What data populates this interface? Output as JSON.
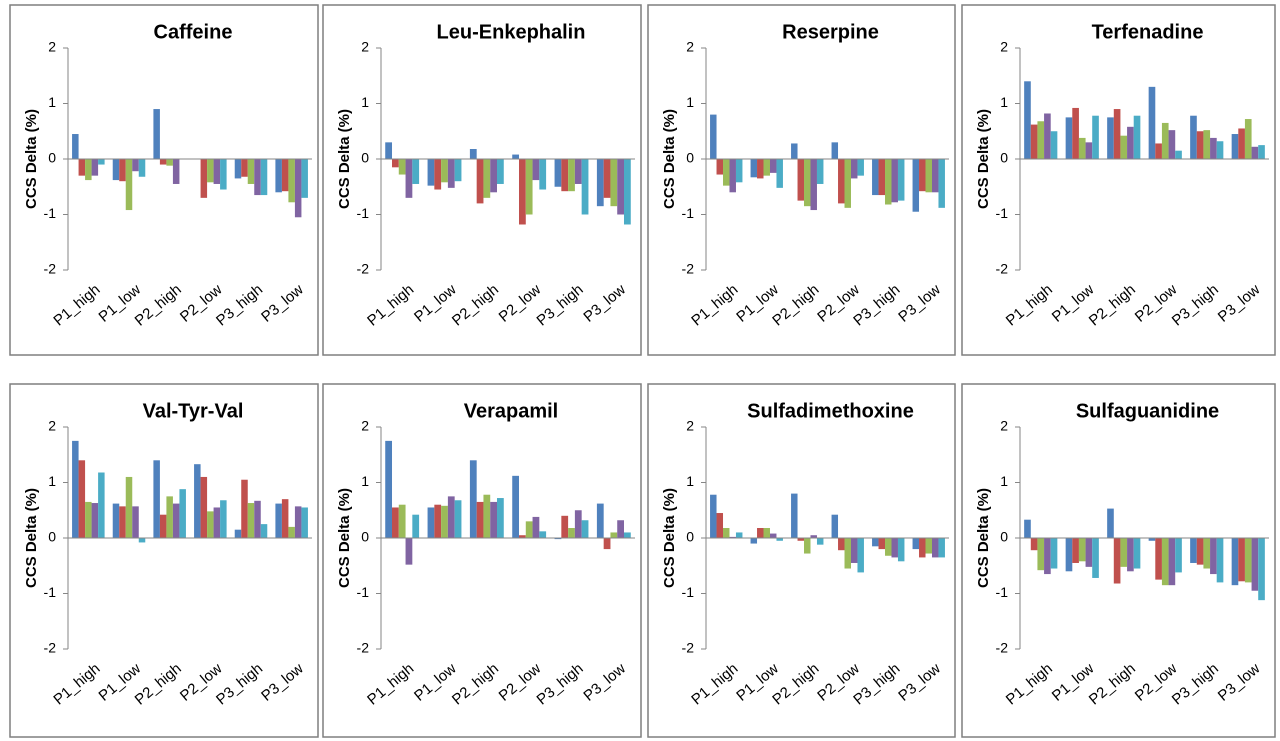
{
  "chart_data": [
    {
      "type": "bar",
      "title": "Caffeine",
      "y_label": "CCS Delta (%)",
      "categories": [
        "P1_high",
        "P1_low",
        "P2_high",
        "P2_low",
        "P3_high",
        "P3_low"
      ],
      "ylim": [
        -2,
        2
      ],
      "yticks": [
        -2,
        -1,
        0,
        1,
        2
      ],
      "series": [
        {
          "color": "#4f81bd",
          "values": [
            0.45,
            -0.38,
            0.9,
            0,
            -0.35,
            -0.6
          ]
        },
        {
          "color": "#c0504d",
          "values": [
            -0.3,
            -0.4,
            -0.1,
            -0.7,
            -0.32,
            -0.58
          ]
        },
        {
          "color": "#9bbb59",
          "values": [
            -0.38,
            -0.92,
            -0.12,
            -0.42,
            -0.45,
            -0.78
          ]
        },
        {
          "color": "#8064a2",
          "values": [
            -0.3,
            -0.22,
            -0.45,
            -0.45,
            -0.65,
            -1.05
          ]
        },
        {
          "color": "#4bacc6",
          "values": [
            -0.1,
            -0.32,
            0,
            -0.55,
            -0.65,
            -0.7
          ]
        }
      ]
    },
    {
      "type": "bar",
      "title": "Leu-Enkephalin",
      "y_label": "CCS Delta (%)",
      "categories": [
        "P1_high",
        "P1_low",
        "P2_high",
        "P2_low",
        "P3_high",
        "P3_low"
      ],
      "ylim": [
        -2,
        2
      ],
      "yticks": [
        -2,
        -1,
        0,
        1,
        2
      ],
      "series": [
        {
          "color": "#4f81bd",
          "values": [
            0.3,
            -0.48,
            0.18,
            0.08,
            -0.5,
            -0.85
          ]
        },
        {
          "color": "#c0504d",
          "values": [
            -0.15,
            -0.55,
            -0.8,
            -1.18,
            -0.58,
            -0.7
          ]
        },
        {
          "color": "#9bbb59",
          "values": [
            -0.28,
            -0.42,
            -0.7,
            -1.0,
            -0.58,
            -0.85
          ]
        },
        {
          "color": "#8064a2",
          "values": [
            -0.7,
            -0.52,
            -0.6,
            -0.38,
            -0.45,
            -1.0
          ]
        },
        {
          "color": "#4bacc6",
          "values": [
            -0.45,
            -0.4,
            -0.45,
            -0.55,
            -1.0,
            -1.18
          ]
        }
      ]
    },
    {
      "type": "bar",
      "title": "Reserpine",
      "y_label": "CCS Delta (%)",
      "categories": [
        "P1_high",
        "P1_low",
        "P2_high",
        "P2_low",
        "P3_high",
        "P3_low"
      ],
      "ylim": [
        -2,
        2
      ],
      "yticks": [
        -2,
        -1,
        0,
        1,
        2
      ],
      "series": [
        {
          "color": "#4f81bd",
          "values": [
            0.8,
            -0.33,
            0.28,
            0.3,
            -0.65,
            -0.95
          ]
        },
        {
          "color": "#c0504d",
          "values": [
            -0.28,
            -0.35,
            -0.75,
            -0.8,
            -0.65,
            -0.58
          ]
        },
        {
          "color": "#9bbb59",
          "values": [
            -0.48,
            -0.3,
            -0.85,
            -0.88,
            -0.82,
            -0.6
          ]
        },
        {
          "color": "#8064a2",
          "values": [
            -0.6,
            -0.25,
            -0.92,
            -0.35,
            -0.78,
            -0.6
          ]
        },
        {
          "color": "#4bacc6",
          "values": [
            -0.42,
            -0.52,
            -0.45,
            -0.3,
            -0.75,
            -0.88
          ]
        }
      ]
    },
    {
      "type": "bar",
      "title": "Terfenadine",
      "y_label": "CCS Delta (%)",
      "categories": [
        "P1_high",
        "P1_low",
        "P2_high",
        "P2_low",
        "P3_high",
        "P3_low"
      ],
      "ylim": [
        -2,
        2
      ],
      "yticks": [
        -2,
        -1,
        0,
        1,
        2
      ],
      "series": [
        {
          "color": "#4f81bd",
          "values": [
            1.4,
            0.75,
            0.75,
            1.3,
            0.78,
            0.45
          ]
        },
        {
          "color": "#c0504d",
          "values": [
            0.62,
            0.92,
            0.9,
            0.28,
            0.5,
            0.55
          ]
        },
        {
          "color": "#9bbb59",
          "values": [
            0.68,
            0.38,
            0.42,
            0.65,
            0.52,
            0.72
          ]
        },
        {
          "color": "#8064a2",
          "values": [
            0.82,
            0.3,
            0.58,
            0.52,
            0.38,
            0.22
          ]
        },
        {
          "color": "#4bacc6",
          "values": [
            0.5,
            0.78,
            0.78,
            0.15,
            0.32,
            0.25
          ]
        }
      ]
    },
    {
      "type": "bar",
      "title": "Val-Tyr-Val",
      "y_label": "CCS Delta (%)",
      "categories": [
        "P1_high",
        "P1_low",
        "P2_high",
        "P2_low",
        "P3_high",
        "P3_low"
      ],
      "ylim": [
        -2,
        2
      ],
      "yticks": [
        -2,
        -1,
        0,
        1,
        2
      ],
      "series": [
        {
          "color": "#4f81bd",
          "values": [
            1.75,
            0.62,
            1.4,
            1.33,
            0.15,
            0.62
          ]
        },
        {
          "color": "#c0504d",
          "values": [
            1.4,
            0.57,
            0.42,
            1.1,
            1.05,
            0.7
          ]
        },
        {
          "color": "#9bbb59",
          "values": [
            0.65,
            1.1,
            0.75,
            0.48,
            0.63,
            0.2
          ]
        },
        {
          "color": "#8064a2",
          "values": [
            0.63,
            0.57,
            0.62,
            0.55,
            0.67,
            0.57
          ]
        },
        {
          "color": "#4bacc6",
          "values": [
            1.18,
            -0.08,
            0.88,
            0.68,
            0.25,
            0.55
          ]
        }
      ]
    },
    {
      "type": "bar",
      "title": "Verapamil",
      "y_label": "CCS Delta (%)",
      "categories": [
        "P1_high",
        "P1_low",
        "P2_high",
        "P2_low",
        "P3_high",
        "P3_low"
      ],
      "ylim": [
        -2,
        2
      ],
      "yticks": [
        -2,
        -1,
        0,
        1,
        2
      ],
      "series": [
        {
          "color": "#4f81bd",
          "values": [
            1.75,
            0.55,
            1.4,
            1.12,
            -0.02,
            0.62
          ]
        },
        {
          "color": "#c0504d",
          "values": [
            0.55,
            0.6,
            0.65,
            0.05,
            0.4,
            -0.2
          ]
        },
        {
          "color": "#9bbb59",
          "values": [
            0.6,
            0.58,
            0.78,
            0.3,
            0.18,
            0.1
          ]
        },
        {
          "color": "#8064a2",
          "values": [
            -0.48,
            0.75,
            0.65,
            0.38,
            0.5,
            0.32
          ]
        },
        {
          "color": "#4bacc6",
          "values": [
            0.42,
            0.68,
            0.72,
            0.12,
            0.32,
            0.1
          ]
        }
      ]
    },
    {
      "type": "bar",
      "title": "Sulfadimethoxine",
      "y_label": "CCS Delta (%)",
      "categories": [
        "P1_high",
        "P1_low",
        "P2_high",
        "P2_low",
        "P3_high",
        "P3_low"
      ],
      "ylim": [
        -2,
        2
      ],
      "yticks": [
        -2,
        -1,
        0,
        1,
        2
      ],
      "series": [
        {
          "color": "#4f81bd",
          "values": [
            0.78,
            -0.1,
            0.8,
            0.42,
            -0.15,
            -0.2
          ]
        },
        {
          "color": "#c0504d",
          "values": [
            0.45,
            0.18,
            -0.05,
            -0.22,
            -0.2,
            -0.35
          ]
        },
        {
          "color": "#9bbb59",
          "values": [
            0.18,
            0.18,
            -0.28,
            -0.55,
            -0.32,
            -0.28
          ]
        },
        {
          "color": "#8064a2",
          "values": [
            0.02,
            0.08,
            0.05,
            -0.45,
            -0.35,
            -0.35
          ]
        },
        {
          "color": "#4bacc6",
          "values": [
            0.1,
            -0.05,
            -0.12,
            -0.62,
            -0.42,
            -0.35
          ]
        }
      ]
    },
    {
      "type": "bar",
      "title": "Sulfaguanidine",
      "y_label": "CCS Delta (%)",
      "categories": [
        "P1_high",
        "P1_low",
        "P2_high",
        "P2_low",
        "P3_high",
        "P3_low"
      ],
      "ylim": [
        -2,
        2
      ],
      "yticks": [
        -2,
        -1,
        0,
        1,
        2
      ],
      "series": [
        {
          "color": "#4f81bd",
          "values": [
            0.33,
            -0.6,
            0.53,
            -0.05,
            -0.45,
            -0.85
          ]
        },
        {
          "color": "#c0504d",
          "values": [
            -0.22,
            -0.45,
            -0.82,
            -0.75,
            -0.48,
            -0.78
          ]
        },
        {
          "color": "#9bbb59",
          "values": [
            -0.58,
            -0.42,
            -0.52,
            -0.85,
            -0.55,
            -0.8
          ]
        },
        {
          "color": "#8064a2",
          "values": [
            -0.65,
            -0.52,
            -0.6,
            -0.85,
            -0.65,
            -0.95
          ]
        },
        {
          "color": "#4bacc6",
          "values": [
            -0.55,
            -0.72,
            -0.55,
            -0.62,
            -0.8,
            -1.12
          ]
        }
      ]
    }
  ]
}
